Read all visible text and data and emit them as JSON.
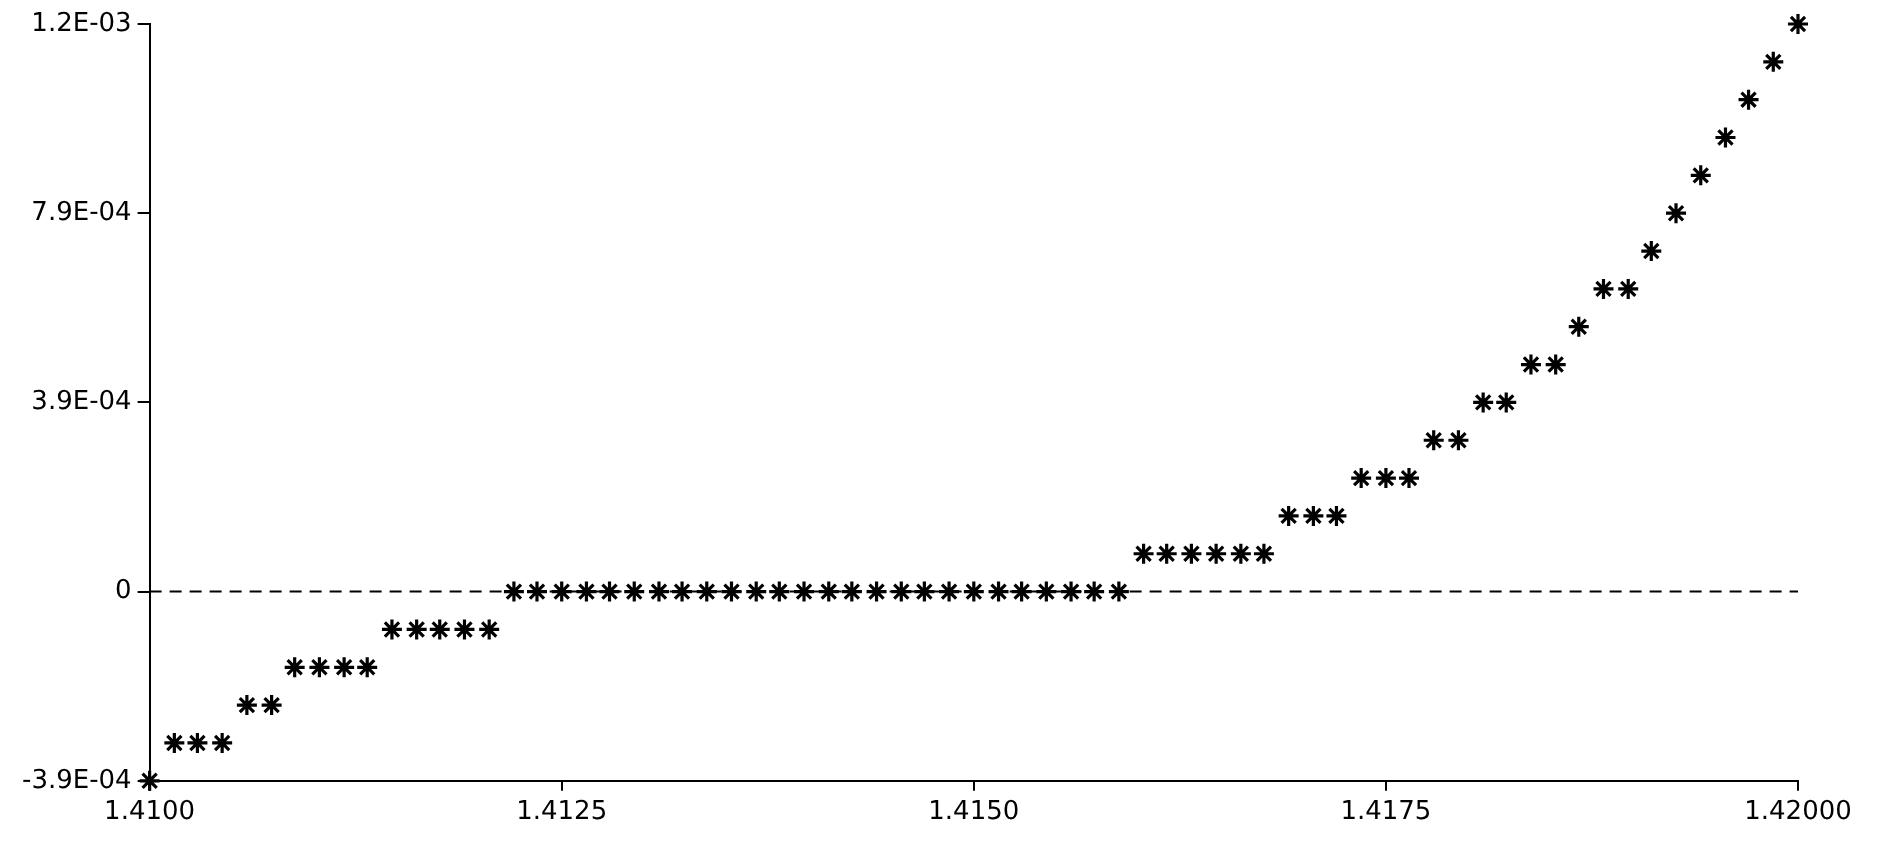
{
  "chart_data": {
    "type": "scatter",
    "marker": "cross",
    "grid": false,
    "x": [
      1.41,
      1.41015,
      1.41029,
      1.41044,
      1.41059,
      1.41074,
      1.41088,
      1.41103,
      1.41118,
      1.41132,
      1.41147,
      1.41162,
      1.41176,
      1.41191,
      1.41206,
      1.41221,
      1.41235,
      1.4125,
      1.41265,
      1.41279,
      1.41294,
      1.41309,
      1.41323,
      1.41338,
      1.41353,
      1.41368,
      1.41382,
      1.41397,
      1.41412,
      1.41426,
      1.41441,
      1.41456,
      1.4147,
      1.41485,
      1.415,
      1.41515,
      1.41529,
      1.41544,
      1.41559,
      1.41573,
      1.41588,
      1.41603,
      1.41617,
      1.41632,
      1.41647,
      1.41662,
      1.41676,
      1.41691,
      1.41706,
      1.4172,
      1.41735,
      1.4175,
      1.41764,
      1.41779,
      1.41794,
      1.41809,
      1.41823,
      1.41838,
      1.41853,
      1.41867,
      1.41882,
      1.41897,
      1.41911,
      1.41926,
      1.41941,
      1.41956,
      1.4197,
      1.41985,
      1.42
    ],
    "series": [
      {
        "color": "#000000",
        "values": [
          -0.000395,
          -0.000316,
          -0.000316,
          -0.000316,
          -0.000237,
          -0.000237,
          -0.000158,
          -0.000158,
          -0.000158,
          -0.000158,
          -7.9e-05,
          -7.9e-05,
          -7.9e-05,
          -7.9e-05,
          -7.9e-05,
          0,
          0,
          0,
          0,
          0,
          0,
          0,
          0,
          0,
          0,
          0,
          0,
          0,
          0,
          0,
          0,
          0,
          0,
          0,
          0,
          0,
          0,
          0,
          0,
          0,
          0,
          7.9e-05,
          7.9e-05,
          7.9e-05,
          7.9e-05,
          7.9e-05,
          7.9e-05,
          0.000158,
          0.000158,
          0.000158,
          0.000237,
          0.000237,
          0.000237,
          0.000316,
          0.000316,
          0.000395,
          0.000395,
          0.000474,
          0.000474,
          0.000553,
          0.000632,
          0.000632,
          0.000711,
          0.00079,
          0.000869,
          0.000948,
          0.001027,
          0.001106,
          0.001185
        ]
      }
    ],
    "xlim": [
      1.41,
      1.42
    ],
    "xticks": [
      {
        "value": 1.41,
        "label": "1.4100"
      },
      1.4125,
      {
        "value": 1.415,
        "label": "1.4150"
      },
      1.4175,
      {
        "value": 1.42,
        "label": "1.42000"
      }
    ],
    "ylim": [
      -0.000395,
      0.001185
    ],
    "yticks": [
      {
        "value": -0.000395,
        "label": "-3.9E-04"
      },
      0,
      {
        "value": 0.000395,
        "label": "3.9E-04"
      },
      {
        "value": 0.00079,
        "label": "7.9E-04"
      },
      {
        "value": 0.001185,
        "label": "1.2E-03"
      }
    ],
    "ref_lines": [
      {
        "axis": "y",
        "value": 0,
        "color": "#000000",
        "line_style": "dashed"
      }
    ]
  }
}
